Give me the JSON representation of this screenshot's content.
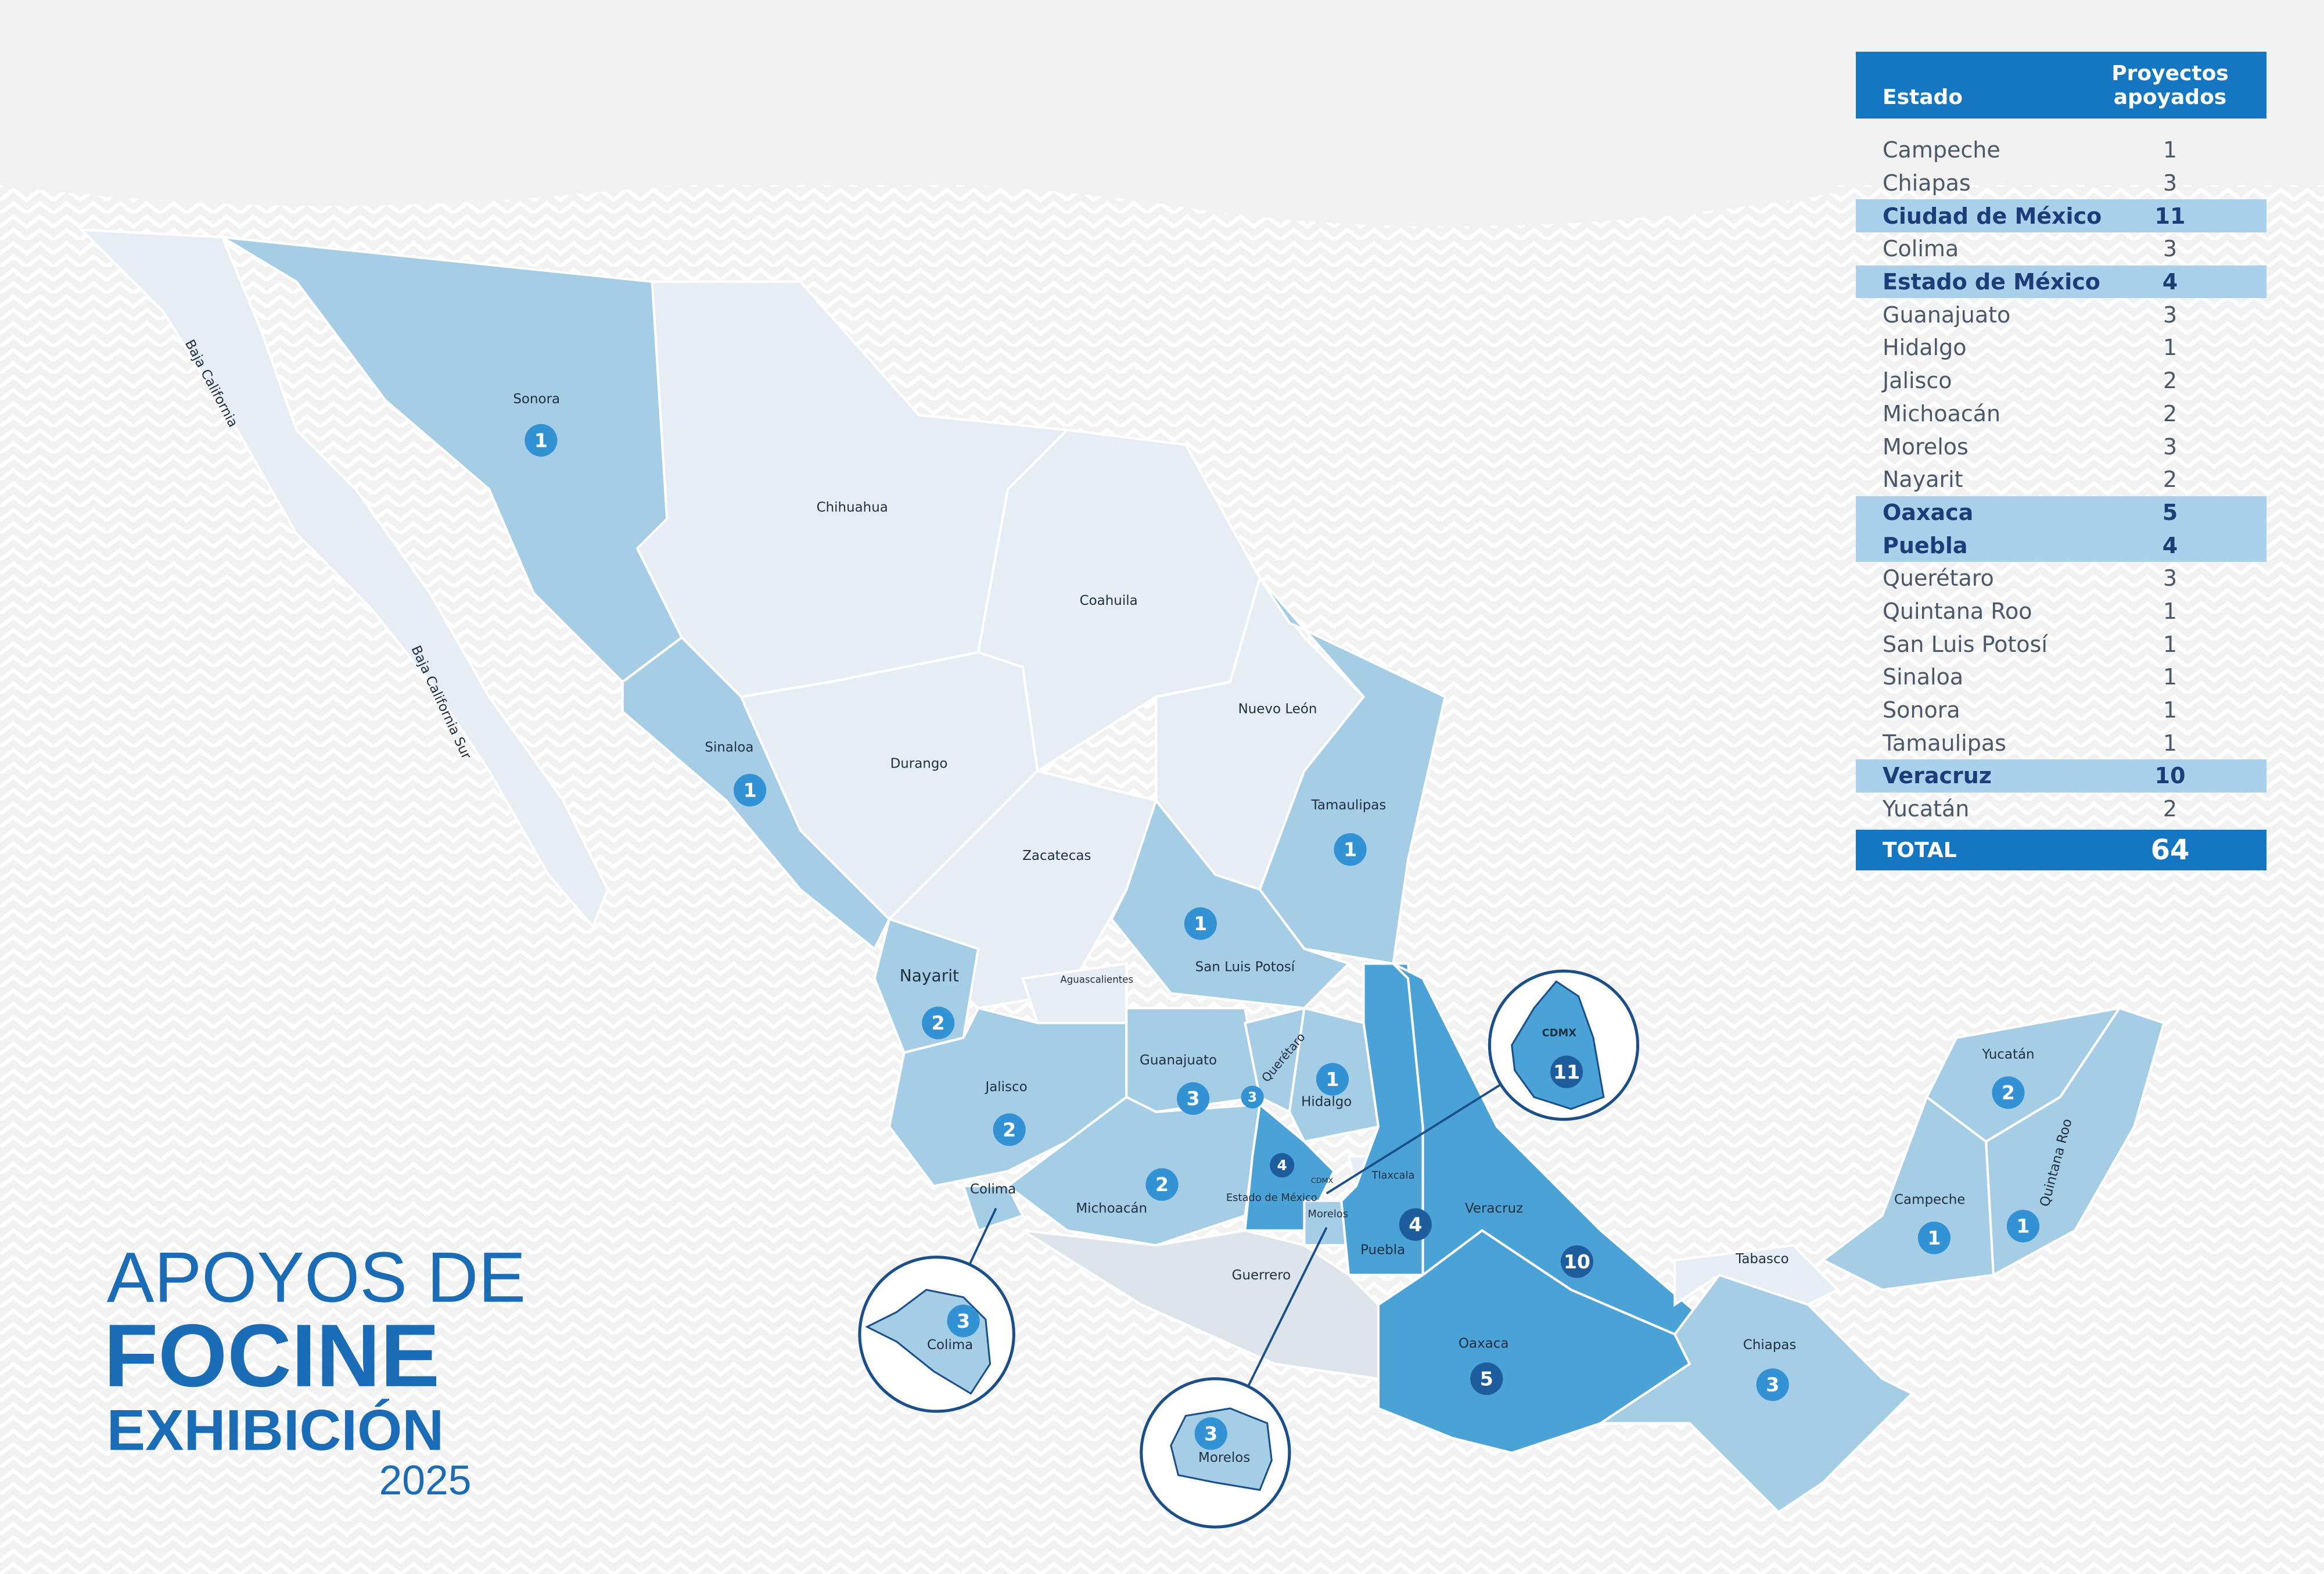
{
  "title": {
    "line1": "APOYOS DE",
    "line2": "FOCINE",
    "line3": "EXHIBICIÓN",
    "line4": "2025"
  },
  "table": {
    "header": {
      "estado": "Estado",
      "proyectos": "Proyectos apoyados"
    },
    "rows": [
      {
        "estado": "Campeche",
        "proyectos": 1
      },
      {
        "estado": "Chiapas",
        "proyectos": 3
      },
      {
        "estado": "Ciudad de México",
        "proyectos": 11,
        "highlight": true
      },
      {
        "estado": "Colima",
        "proyectos": 3
      },
      {
        "estado": "Estado de México",
        "proyectos": 4,
        "highlight": true
      },
      {
        "estado": "Guanajuato",
        "proyectos": 3
      },
      {
        "estado": "Hidalgo",
        "proyectos": 1
      },
      {
        "estado": "Jalisco",
        "proyectos": 2
      },
      {
        "estado": "Michoacán",
        "proyectos": 2
      },
      {
        "estado": "Morelos",
        "proyectos": 3
      },
      {
        "estado": "Nayarit",
        "proyectos": 2
      },
      {
        "estado": "Oaxaca",
        "proyectos": 5,
        "highlight": true
      },
      {
        "estado": "Puebla",
        "proyectos": 4,
        "highlight": true
      },
      {
        "estado": "Querétaro",
        "proyectos": 3
      },
      {
        "estado": "Quintana Roo",
        "proyectos": 1
      },
      {
        "estado": "San Luis Potosí",
        "proyectos": 1
      },
      {
        "estado": "Sinaloa",
        "proyectos": 1
      },
      {
        "estado": "Sonora",
        "proyectos": 1
      },
      {
        "estado": "Tamaulipas",
        "proyectos": 1
      },
      {
        "estado": "Veracruz",
        "proyectos": 10,
        "highlight": true
      },
      {
        "estado": "Yucatán",
        "proyectos": 2
      }
    ],
    "total": {
      "label": "TOTAL",
      "value": 64
    }
  },
  "map": {
    "labels": [
      {
        "name": "Baja California"
      },
      {
        "name": "Baja California Sur"
      },
      {
        "name": "Sonora",
        "count": 1
      },
      {
        "name": "Chihuahua"
      },
      {
        "name": "Coahuila"
      },
      {
        "name": "Sinaloa",
        "count": 1
      },
      {
        "name": "Durango"
      },
      {
        "name": "Nuevo León"
      },
      {
        "name": "Tamaulipas",
        "count": 1
      },
      {
        "name": "Zacatecas"
      },
      {
        "name": "San Luis Potosí",
        "count": 1
      },
      {
        "name": "Nayarit",
        "count": 2
      },
      {
        "name": "Aguascalientes"
      },
      {
        "name": "Jalisco",
        "count": 2
      },
      {
        "name": "Guanajuato",
        "count": 3
      },
      {
        "name": "Querétaro",
        "count": 3
      },
      {
        "name": "Hidalgo",
        "count": 1
      },
      {
        "name": "Michoacán",
        "count": 2
      },
      {
        "name": "Colima"
      },
      {
        "name": "Estado de México",
        "count": 4
      },
      {
        "name": "CDMX"
      },
      {
        "name": "Tlaxcala"
      },
      {
        "name": "Morelos"
      },
      {
        "name": "Puebla",
        "count": 4
      },
      {
        "name": "Veracruz",
        "count": 10
      },
      {
        "name": "Guerrero"
      },
      {
        "name": "Oaxaca",
        "count": 5
      },
      {
        "name": "Tabasco"
      },
      {
        "name": "Chiapas",
        "count": 3
      },
      {
        "name": "Campeche",
        "count": 1
      },
      {
        "name": "Yucatán",
        "count": 2
      },
      {
        "name": "Quintana Roo",
        "count": 1
      }
    ],
    "insets": [
      {
        "name": "CDMX",
        "count": 11
      },
      {
        "name": "Colima",
        "count": 3
      },
      {
        "name": "Morelos",
        "count": 3
      }
    ]
  }
}
